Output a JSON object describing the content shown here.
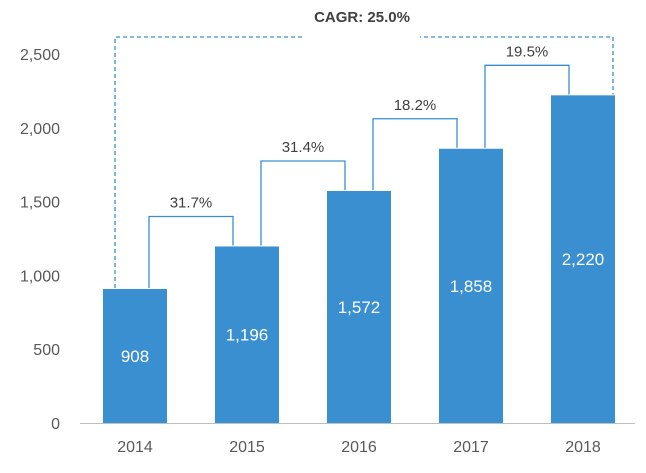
{
  "chart_data": {
    "type": "bar",
    "title": "",
    "xlabel": "",
    "ylabel": "",
    "categories": [
      "2014",
      "2015",
      "2016",
      "2017",
      "2018"
    ],
    "values": [
      908,
      1196,
      1572,
      1858,
      2220
    ],
    "value_labels": [
      "908",
      "1,196",
      "1,572",
      "1,858",
      "2,220"
    ],
    "ylim": [
      0,
      2500
    ],
    "yticks": [
      0,
      500,
      1000,
      1500,
      2000,
      2500
    ],
    "ytick_labels": [
      "0",
      "500",
      "1,000",
      "1,500",
      "2,000",
      "2,500"
    ],
    "growth_annotations": [
      {
        "from": "2014",
        "to": "2015",
        "label": "31.7%"
      },
      {
        "from": "2015",
        "to": "2016",
        "label": "31.4%"
      },
      {
        "from": "2016",
        "to": "2017",
        "label": "18.2%"
      },
      {
        "from": "2017",
        "to": "2018",
        "label": "19.5%"
      }
    ],
    "cagr_label": "CAGR: 25.0%",
    "grid": false,
    "legend": "none",
    "colors": {
      "bar": "#3a8fd1",
      "connector": "#3a8fd1",
      "cagr_connector": "#3a8fd1",
      "axis": "#bfbfbf"
    }
  }
}
